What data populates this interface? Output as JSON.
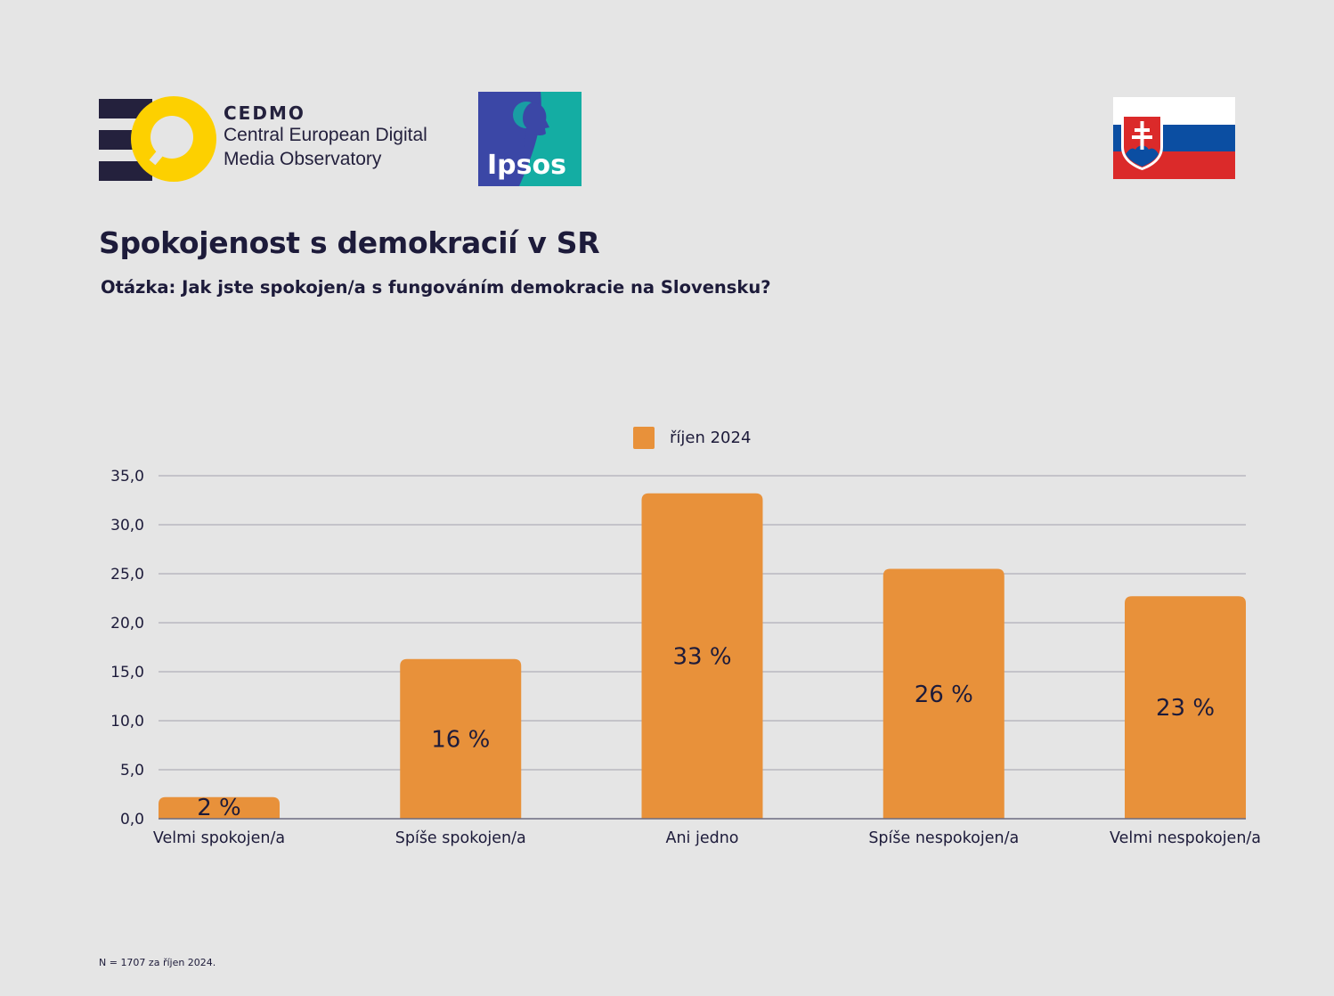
{
  "header": {
    "cedmo": {
      "name": "CEDMO",
      "line1": "Central European Digital",
      "line2": "Media Observatory"
    },
    "ipsos": {
      "name": "Ipsos"
    },
    "flag": {
      "country": "Slovakia"
    }
  },
  "colors": {
    "bar": "#e8913a",
    "text": "#1d1b3a",
    "grid": "#b9b8c0",
    "background": "#e5e5e5",
    "cedmo_yellow": "#fdd000",
    "ipsos_blue": "#3b47a6",
    "ipsos_teal": "#14ada3"
  },
  "footnote": "N = 1707 za říjen 2024.",
  "chart_data": {
    "type": "bar",
    "title": "Spokojenost s demokracií v SR",
    "subtitle": "Otázka: Jak jste spokojen/a s fungováním demokracie na Slovensku?",
    "xlabel": "",
    "ylabel": "",
    "ylim": [
      0,
      35
    ],
    "yticks": [
      0,
      5,
      10,
      15,
      20,
      25,
      30,
      35
    ],
    "ytick_labels": [
      "0,0",
      "5,0",
      "10,0",
      "15,0",
      "20,0",
      "25,0",
      "30,0",
      "35,0"
    ],
    "grid": true,
    "legend_position": "top-center",
    "categories": [
      "Velmi spokojen/a",
      "Spíše spokojen/a",
      "Ani jedno",
      "Spíše nespokojen/a",
      "Velmi nespokojen/a"
    ],
    "series": [
      {
        "name": "říjen 2024",
        "values": [
          2.2,
          16.3,
          33.2,
          25.5,
          22.7
        ],
        "data_labels": [
          "2 %",
          "16 %",
          "33 %",
          "26 %",
          "23 %"
        ]
      }
    ]
  }
}
